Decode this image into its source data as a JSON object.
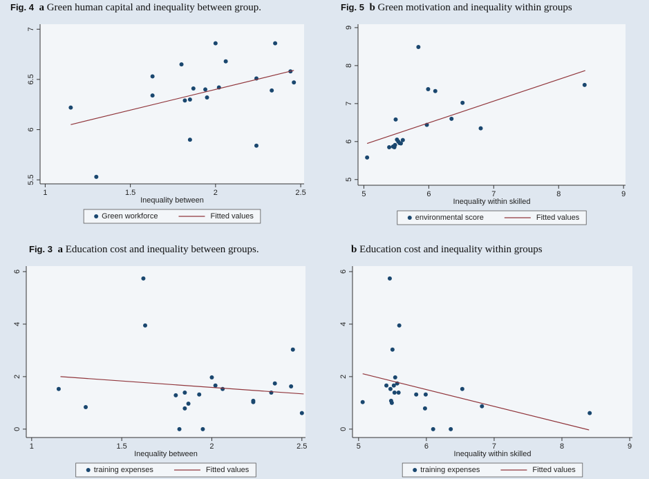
{
  "chart_data": [
    {
      "type": "scatter",
      "figure_label": "Fig. 4",
      "panel_label": "a",
      "title": "Green human capital and inequality between group.",
      "x_label": "Inequality between",
      "legend": "bottom",
      "grid": false,
      "xlim": [
        0.97,
        2.52
      ],
      "xticks": [
        1,
        1.5,
        2,
        2.5
      ],
      "ylim": [
        5.46,
        7.05
      ],
      "yticks": [
        5.5,
        6,
        6.5,
        7
      ],
      "series": [
        {
          "name": "Green workforce",
          "kind": "scatter",
          "color": "#1a476f",
          "x": [
            1.15,
            1.3,
            1.63,
            1.63,
            1.8,
            1.82,
            1.85,
            1.85,
            1.87,
            1.94,
            1.95,
            2.0,
            2.02,
            2.06,
            2.24,
            2.24,
            2.33,
            2.35,
            2.44,
            2.46
          ],
          "values": [
            6.22,
            5.53,
            6.53,
            6.34,
            6.65,
            6.29,
            6.3,
            5.9,
            6.41,
            6.4,
            6.32,
            6.86,
            6.42,
            6.68,
            6.51,
            5.84,
            6.39,
            6.86,
            6.58,
            6.47
          ]
        },
        {
          "name": "Fitted values",
          "kind": "line",
          "color": "#90353b",
          "x": [
            1.15,
            2.46
          ],
          "values": [
            6.05,
            6.59
          ]
        }
      ]
    },
    {
      "type": "scatter",
      "figure_label": "Fig. 5",
      "panel_label": "b",
      "title": "Green motivation and inequality within groups",
      "x_label": "Inequality within skilled",
      "legend": "bottom",
      "grid": false,
      "xlim": [
        4.91,
        9.03
      ],
      "xticks": [
        5,
        6,
        7,
        8,
        9
      ],
      "ylim": [
        4.85,
        9.09
      ],
      "yticks": [
        5,
        6,
        7,
        8,
        9
      ],
      "series": [
        {
          "name": "environmental score",
          "kind": "scatter",
          "color": "#1a476f",
          "x": [
            5.05,
            5.39,
            5.45,
            5.47,
            5.48,
            5.49,
            5.51,
            5.53,
            5.55,
            5.57,
            5.6,
            5.84,
            5.97,
            5.99,
            6.1,
            6.35,
            6.52,
            6.8,
            8.4
          ],
          "values": [
            5.58,
            5.85,
            5.87,
            5.85,
            5.91,
            6.58,
            6.05,
            6.0,
            5.96,
            5.95,
            6.04,
            8.49,
            6.44,
            7.38,
            7.33,
            6.6,
            7.02,
            6.35,
            7.49
          ]
        },
        {
          "name": "Fitted values",
          "kind": "line",
          "color": "#90353b",
          "x": [
            5.05,
            8.41
          ],
          "values": [
            5.95,
            7.87
          ]
        }
      ]
    },
    {
      "type": "scatter",
      "figure_label": "Fig. 3",
      "panel_label": "a",
      "title": "Education cost and inequality between groups.",
      "x_label": "Inequality between",
      "legend": "bottom",
      "grid": false,
      "xlim": [
        0.97,
        2.52
      ],
      "xticks": [
        1,
        1.5,
        2,
        2.5
      ],
      "ylim": [
        -0.32,
        6.21
      ],
      "yticks": [
        0,
        2,
        4,
        6
      ],
      "series": [
        {
          "name": "training expenses",
          "kind": "scatter",
          "color": "#1a476f",
          "x": [
            1.15,
            1.3,
            1.62,
            1.63,
            1.8,
            1.82,
            1.85,
            1.85,
            1.87,
            1.93,
            1.95,
            2.0,
            2.02,
            2.06,
            2.23,
            2.23,
            2.33,
            2.35,
            2.44,
            2.45,
            2.5
          ],
          "values": [
            1.53,
            0.84,
            5.74,
            3.95,
            1.29,
            0,
            1.39,
            0.79,
            0.97,
            1.32,
            0,
            1.97,
            1.66,
            1.53,
            1.08,
            1.03,
            1.39,
            1.74,
            1.63,
            3.03,
            0.61
          ]
        },
        {
          "name": "Fitted values",
          "kind": "line",
          "color": "#90353b",
          "x": [
            1.16,
            2.51
          ],
          "values": [
            2.0,
            1.34
          ]
        }
      ]
    },
    {
      "type": "scatter",
      "panel_label": "b",
      "title": "Education cost and inequality within groups",
      "x_label": "Inequality within skilled",
      "legend": "bottom",
      "grid": false,
      "xlim": [
        4.91,
        9.04
      ],
      "xticks": [
        5,
        6,
        7,
        8,
        9
      ],
      "ylim": [
        -0.32,
        6.21
      ],
      "yticks": [
        0,
        2,
        4,
        6
      ],
      "series": [
        {
          "name": "training expenses",
          "kind": "scatter",
          "color": "#1a476f",
          "x": [
            5.06,
            5.41,
            5.46,
            5.47,
            5.48,
            5.49,
            5.5,
            5.52,
            5.53,
            5.54,
            5.57,
            5.59,
            5.6,
            5.85,
            5.98,
            5.99,
            6.1,
            6.36,
            6.53,
            6.82,
            8.41
          ],
          "values": [
            1.03,
            1.66,
            5.74,
            1.53,
            1.08,
            1.0,
            3.03,
            1.66,
            1.39,
            1.97,
            1.74,
            1.39,
            3.95,
            1.32,
            0.79,
            1.32,
            0,
            0,
            1.53,
            0.87,
            0.61
          ]
        },
        {
          "name": "Fitted values",
          "kind": "line",
          "color": "#90353b",
          "x": [
            5.06,
            8.4
          ],
          "values": [
            2.11,
            -0.03
          ]
        }
      ]
    }
  ]
}
